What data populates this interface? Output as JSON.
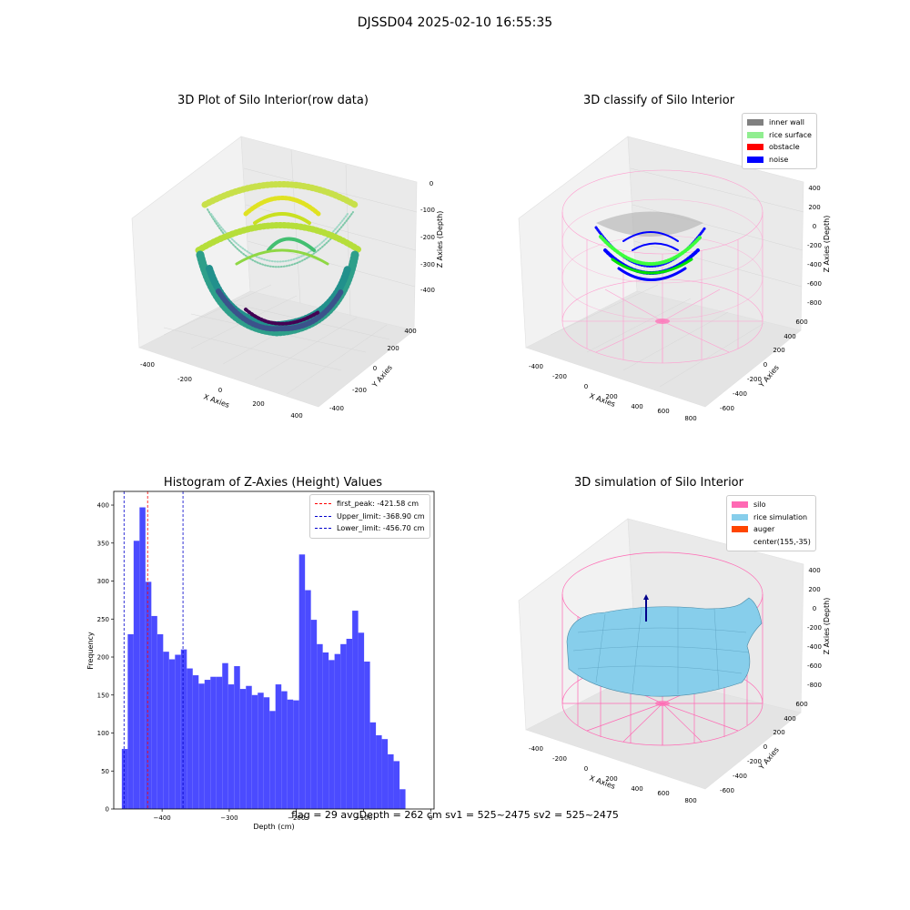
{
  "suptitle": "DJSSD04 2025-02-10 16:55:35",
  "panels": {
    "raw": {
      "title": "3D Plot of Silo Interior(row data)",
      "xlabel": "X Axies",
      "ylabel": "Y Axies",
      "zlabel": "Z Axies (Depth)",
      "xticks": [
        "-400",
        "-200",
        "0",
        "200",
        "400"
      ],
      "yticks": [
        "-400",
        "-200",
        "0",
        "200",
        "400"
      ],
      "zticks": [
        "0",
        "-100",
        "-200",
        "-300",
        "-400"
      ]
    },
    "classify": {
      "title": "3D classify of Silo Interior",
      "xlabel": "X Axies",
      "ylabel": "Y Axies",
      "zlabel": "Z Axies (Depth)",
      "xticks": [
        "-400",
        "-200",
        "0",
        "200",
        "400",
        "600",
        "800"
      ],
      "yticks": [
        "-600",
        "-400",
        "-200",
        "0",
        "200",
        "400",
        "600"
      ],
      "zticks": [
        "400",
        "200",
        "0",
        "-200",
        "-400",
        "-600",
        "-800"
      ],
      "legend": [
        {
          "label": "inner wall",
          "color": "#808080"
        },
        {
          "label": "rice surface",
          "color": "#90ee90"
        },
        {
          "label": "obstacle",
          "color": "#ff0000"
        },
        {
          "label": "noise",
          "color": "#0000ff"
        }
      ]
    },
    "simulation": {
      "title": "3D simulation of Silo Interior",
      "xlabel": "X Axies",
      "ylabel": "Y Axies",
      "zlabel": "Z Axies (Depth)",
      "xticks": [
        "-400",
        "-200",
        "0",
        "200",
        "400",
        "600",
        "800"
      ],
      "yticks": [
        "-600",
        "-400",
        "-200",
        "0",
        "200",
        "400",
        "600"
      ],
      "zticks": [
        "400",
        "200",
        "0",
        "-200",
        "-400",
        "-600",
        "-800"
      ],
      "legend": [
        {
          "label": "silo",
          "color": "#ff69b4"
        },
        {
          "label": "rice simulation",
          "color": "#87ceeb"
        },
        {
          "label": "auger",
          "color": "#ff4500"
        },
        {
          "label": "center(155,-35)",
          "color": ""
        }
      ],
      "status": "flag = 29  avgDepth = 262 cm  sv1 = 525~2475  sv2 = 525~2475"
    }
  },
  "chart_data": [
    {
      "type": "bar",
      "title": "Histogram of Z-Axies (Height) Values",
      "xlabel": "Depth (cm)",
      "ylabel": "Frequency",
      "xlim": [
        -472,
        5
      ],
      "ylim": [
        0,
        418
      ],
      "xticks": [
        -400,
        -300,
        -200,
        -100,
        0
      ],
      "yticks": [
        0,
        50,
        100,
        150,
        200,
        250,
        300,
        350,
        400
      ],
      "bar_color": "#4b4bff",
      "bin_start": -460,
      "bin_width": 8.8,
      "values": [
        79,
        230,
        353,
        397,
        299,
        254,
        230,
        207,
        197,
        203,
        210,
        185,
        176,
        165,
        170,
        174,
        174,
        192,
        164,
        188,
        158,
        162,
        150,
        153,
        147,
        129,
        164,
        155,
        144,
        143,
        335,
        288,
        249,
        217,
        206,
        196,
        204,
        217,
        224,
        261,
        232,
        194,
        114,
        97,
        92,
        72,
        63,
        26
      ],
      "vlines": [
        {
          "label": "first_peak: -421.58 cm",
          "x": -421.58,
          "color": "#ff0000"
        },
        {
          "label": "Upper_limit: -368.90 cm",
          "x": -368.9,
          "color": "#0000cc"
        },
        {
          "label": "Lower_limit: -456.70 cm",
          "x": -456.7,
          "color": "#0000cc"
        }
      ]
    }
  ]
}
